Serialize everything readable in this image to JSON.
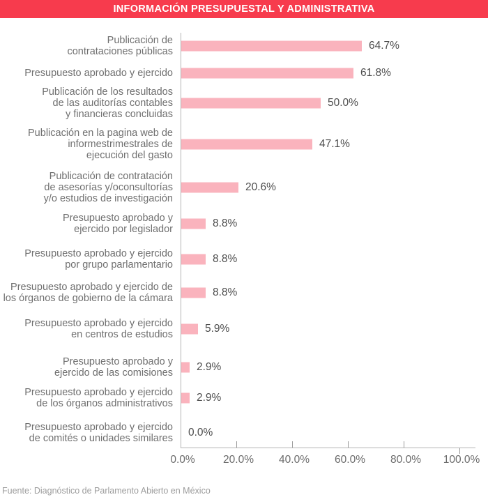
{
  "header": {
    "title": "INFORMACIÓN PRESUPUESTAL Y ADMINISTRATIVA",
    "bg_color": "#f73b4d",
    "text_color": "#ffffff"
  },
  "chart_data": {
    "type": "bar",
    "orientation": "horizontal",
    "title": "INFORMACIÓN PRESUPUESTAL Y ADMINISTRATIVA",
    "categories": [
      "Publicación de\ncontrataciones públicas",
      "Presupuesto aprobado y ejercido",
      "Publicación de los resultados\nde las auditorías contables\ny financieras concluidas",
      "Publicación en la pagina web de\ninformestrimestrales de\nejecución del gasto",
      "Publicación de contratación\nde asesorías y/oconsultorías\ny/o estudios de investigación",
      "Presupuesto aprobado y\nejercido por legislador",
      "Presupuesto aprobado y ejercido\npor grupo parlamentario",
      "Presupuesto aprobado y ejercido de\nlos órganos de gobierno de la cámara",
      "Presupuesto aprobado y ejercido\nen centros de estudios",
      "Presupuesto aprobado y\nejercido de las comisiones",
      "Presupuesto aprobado y ejercido\nde los órganos administrativos",
      "Presupuesto aprobado y ejercido\nde comités o unidades similares"
    ],
    "values": [
      64.7,
      61.8,
      50.0,
      47.1,
      20.6,
      8.8,
      8.8,
      8.8,
      5.9,
      2.9,
      2.9,
      0.0
    ],
    "value_labels": [
      "64.7%",
      "61.8%",
      "50.0%",
      "47.1%",
      "20.6%",
      "8.8%",
      "8.8%",
      "8.8%",
      "5.9%",
      "2.9%",
      "2.9%",
      "0.0%"
    ],
    "xlabel": "",
    "ylabel": "",
    "xlim": [
      0,
      100
    ],
    "x_tick_values": [
      0,
      20,
      40,
      60,
      80,
      100
    ],
    "x_tick_labels": [
      "0.0%",
      "20.0%",
      "40.0%",
      "60.0%",
      "80.0%",
      "100.0%"
    ],
    "grid": false,
    "legend": null,
    "bar_color": "#fab3bd"
  },
  "footer": {
    "source": "Fuente: Diagnóstico de Parlamento Abierto en México"
  }
}
